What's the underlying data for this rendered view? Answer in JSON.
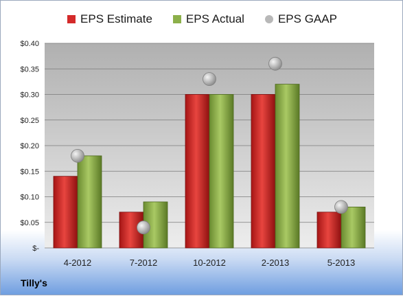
{
  "chart_data": {
    "type": "bar",
    "categories": [
      "4-2012",
      "7-2012",
      "10-2012",
      "2-2013",
      "5-2013"
    ],
    "series": [
      {
        "name": "EPS Estimate",
        "kind": "bar",
        "color": "#d42a2a",
        "values": [
          0.14,
          0.07,
          0.3,
          0.3,
          0.07
        ]
      },
      {
        "name": "EPS Actual",
        "kind": "bar",
        "color": "#8cb04a",
        "values": [
          0.18,
          0.09,
          0.3,
          0.32,
          0.08
        ]
      },
      {
        "name": "EPS GAAP",
        "kind": "marker",
        "color": "#b8b8b8",
        "values": [
          0.18,
          0.04,
          0.33,
          0.36,
          0.08
        ]
      }
    ],
    "ylim": [
      0,
      0.4
    ],
    "yticks": [
      0,
      0.05,
      0.1,
      0.15,
      0.2,
      0.25,
      0.3,
      0.35,
      0.4
    ],
    "ytick_labels": [
      "$-",
      "$0.05",
      "$0.10",
      "$0.15",
      "$0.20",
      "$0.25",
      "$0.30",
      "$0.35",
      "$0.40"
    ],
    "grid": true,
    "legend_position": "top"
  },
  "company": "Tilly's"
}
